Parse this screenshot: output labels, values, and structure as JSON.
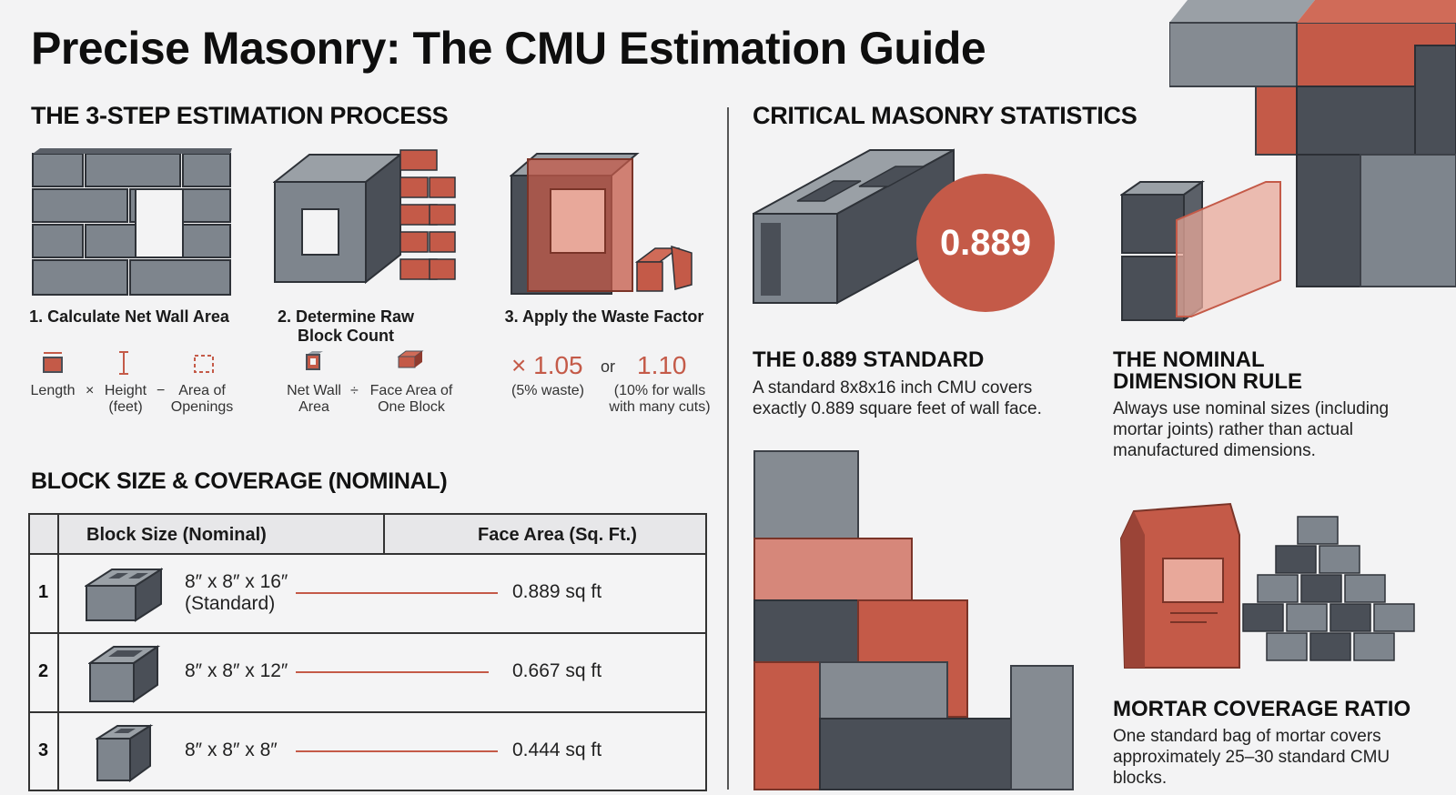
{
  "title": "Precise Masonry: The CMU Estimation Guide",
  "sections": {
    "process": "THE 3-STEP ESTIMATION PROCESS",
    "stats": "CRITICAL MASONRY STATISTICS",
    "coverage": "BLOCK SIZE & COVERAGE (NOMINAL)"
  },
  "steps": [
    {
      "title": "1. Calculate Net Wall Area",
      "labels": [
        "Length",
        "Height (feet)",
        "Area of Openings"
      ],
      "ops": [
        "×",
        "−"
      ]
    },
    {
      "title": "2. Determine Raw Block Count",
      "labels": [
        "Net Wall Area",
        "Face Area of One Block"
      ],
      "ops": [
        "÷"
      ]
    },
    {
      "title": "3. Apply the Waste Factor",
      "factor_a": "× 1.05",
      "factor_a_note": "(5% waste)",
      "or": "or",
      "factor_b": "1.10",
      "factor_b_note": "(10% for walls with many cuts)"
    }
  ],
  "table": {
    "headers": [
      "Block Size (Nominal)",
      "Face Area (Sq. Ft.)"
    ],
    "rows": [
      {
        "num": "1",
        "size_line1": "8″ x 8″ x 16″",
        "size_line2": "(Standard)",
        "area": "0.889 sq ft"
      },
      {
        "num": "2",
        "size_line1": "8″ x 8″ x 12″",
        "size_line2": "",
        "area": "0.667 sq ft"
      },
      {
        "num": "3",
        "size_line1": "8″ x 8″ x 8″",
        "size_line2": "",
        "area": "0.444 sq ft"
      }
    ]
  },
  "stats": {
    "badge": "0.889",
    "standard": {
      "title": "THE 0.889 STANDARD",
      "text": "A standard 8x8x16 inch CMU covers exactly 0.889 square feet of wall face."
    },
    "nominal": {
      "title_line1": "THE NOMINAL",
      "title_line2": "DIMENSION RULE",
      "text": "Always use nominal sizes (including mortar joints) rather than actual manufactured dimensions."
    },
    "mortar": {
      "title": "MORTAR COVERAGE RATIO",
      "text": "One standard bag of mortar covers approximately 25–30 standard CMU blocks."
    }
  },
  "colors": {
    "terracotta": "#c45a48",
    "slate": "#4a4f57",
    "gray": "#7e858d",
    "background": "#f3f3f4"
  }
}
